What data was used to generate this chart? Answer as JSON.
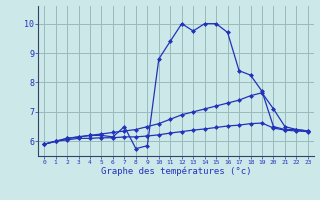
{
  "bg_color": "#cce8e8",
  "grid_color": "#99bbbb",
  "line_color": "#2233bb",
  "marker_color": "#2233bb",
  "xlabel": "Graphe des températures (°c)",
  "ylabel_ticks": [
    6,
    7,
    8,
    9,
    10
  ],
  "xlim": [
    -0.5,
    23.5
  ],
  "ylim": [
    5.5,
    10.6
  ],
  "line1_x": [
    0,
    1,
    2,
    3,
    4,
    5,
    6,
    7,
    8,
    9,
    10,
    11,
    12,
    13,
    14,
    15,
    16,
    17,
    18,
    19,
    20,
    21,
    22,
    23
  ],
  "line1_y": [
    5.9,
    6.0,
    6.1,
    6.15,
    6.2,
    6.2,
    6.15,
    6.5,
    5.75,
    5.85,
    8.8,
    9.4,
    10.0,
    9.75,
    10.0,
    10.0,
    9.7,
    8.4,
    8.25,
    7.7,
    6.5,
    6.4,
    6.4,
    6.35
  ],
  "line2_x": [
    0,
    1,
    2,
    3,
    4,
    5,
    6,
    7,
    8,
    9,
    10,
    11,
    12,
    13,
    14,
    15,
    16,
    17,
    18,
    19,
    20,
    21,
    22,
    23
  ],
  "line2_y": [
    5.9,
    6.0,
    6.1,
    6.15,
    6.2,
    6.25,
    6.3,
    6.35,
    6.4,
    6.5,
    6.6,
    6.75,
    6.9,
    7.0,
    7.1,
    7.2,
    7.3,
    7.4,
    7.55,
    7.65,
    7.1,
    6.5,
    6.4,
    6.35
  ],
  "line3_x": [
    0,
    1,
    2,
    3,
    4,
    5,
    6,
    7,
    8,
    9,
    10,
    11,
    12,
    13,
    14,
    15,
    16,
    17,
    18,
    19,
    20,
    21,
    22,
    23
  ],
  "line3_y": [
    5.9,
    6.0,
    6.05,
    6.1,
    6.1,
    6.12,
    6.12,
    6.15,
    6.15,
    6.18,
    6.22,
    6.28,
    6.33,
    6.38,
    6.42,
    6.47,
    6.52,
    6.55,
    6.6,
    6.62,
    6.45,
    6.38,
    6.35,
    6.33
  ],
  "xtick_labels": [
    "0",
    "1",
    "2",
    "3",
    "4",
    "5",
    "6",
    "7",
    "8",
    "9",
    "10",
    "11",
    "12",
    "13",
    "14",
    "15",
    "16",
    "17",
    "18",
    "19",
    "20",
    "21",
    "22",
    "23"
  ]
}
